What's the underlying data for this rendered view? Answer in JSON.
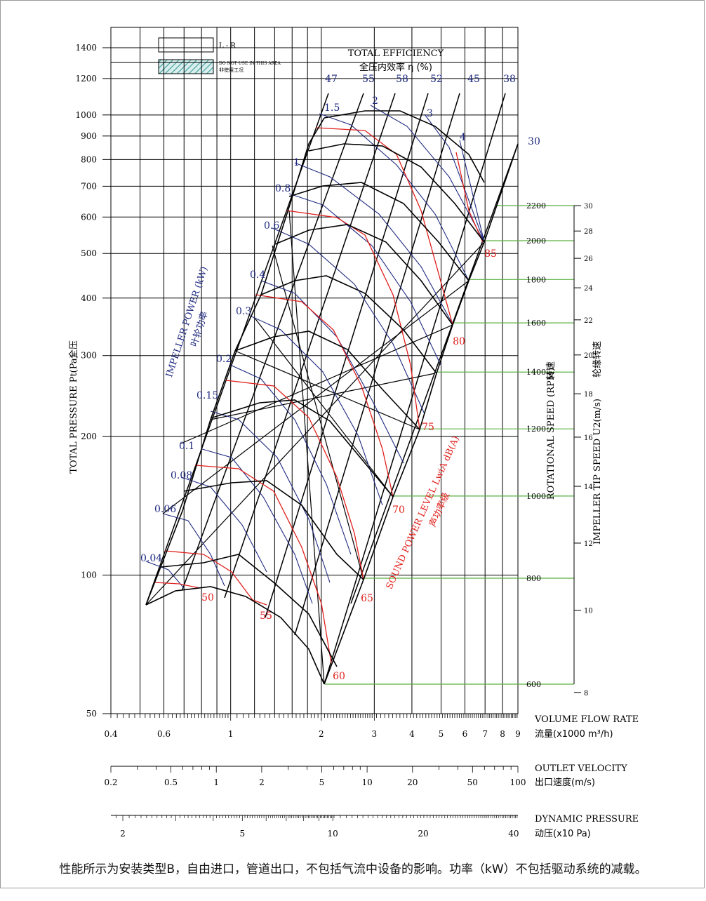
{
  "colors": {
    "grid": "#000000",
    "efficiency": "#1f2a80",
    "power": "#1f2a80",
    "sound": "#e0201c",
    "speed_lines": "#5ab040",
    "envelope": "#000000",
    "area_pattern": "#3a9a98"
  },
  "legend": {
    "lr": "L - R",
    "do_not_use_en": "DO NOT USE IN THIS AREA",
    "do_not_use_cn": "非使用工况"
  },
  "chart_data": {
    "type": "line",
    "scale": "log-log",
    "y_axis": {
      "label_en": "TOTAL PRESSURE Pt(Pa)",
      "label_cn": "全压",
      "ylim": [
        50,
        1550
      ],
      "ticks": [
        "50",
        "100",
        "200",
        "300",
        "400",
        "500",
        "600",
        "700",
        "800",
        "900",
        "1000",
        "1200",
        "1400"
      ]
    },
    "x_axis": {
      "label_en": "VOLUME FLOW RATE",
      "label_cn": "流量(x1000 m³/h)",
      "xlim": [
        0.4,
        9
      ],
      "ticks": [
        "0.4",
        "0.6",
        "1",
        "2",
        "3",
        "4",
        "5",
        "6",
        "7",
        "8",
        "9"
      ]
    },
    "outlet_velocity_axis": {
      "label_en": "OUTLET VELOCITY",
      "label_cn": "出口速度(m/s)",
      "ticks": [
        "0.2",
        "0.5",
        "1",
        "2",
        "5",
        "10",
        "20",
        "50",
        "100"
      ]
    },
    "dynamic_pressure_axis": {
      "label_en": "DYNAMIC PRESSURE",
      "label_cn": "动压(x10 Pa)",
      "ticks": [
        "2",
        "5",
        "10",
        "20",
        "40"
      ]
    },
    "efficiency": {
      "title_en": "TOTAL EFFICIENCY",
      "title_cn": "全压内效率 η (%)",
      "labels": [
        "47",
        "55",
        "58",
        "52",
        "45",
        "38",
        "30"
      ]
    },
    "impeller_power": {
      "label_en": "IMPELLER POWER (kW)",
      "label_cn": "叶轮功率",
      "labels": [
        "0.04",
        "0.06",
        "0.08",
        "0.1",
        "0.15",
        "0.2",
        "0.3",
        "0.4",
        "0.6",
        "0.8",
        "1",
        "1.5",
        "2",
        "3",
        "4"
      ]
    },
    "sound_power": {
      "label_en": "SOUND POWER LEVEL LwiA dB(A)",
      "label_cn": "声功率级",
      "labels": [
        "50",
        "55",
        "60",
        "65",
        "70",
        "75",
        "80",
        "85"
      ]
    },
    "rotational_speed": {
      "label_en": "ROTATIONAL SPEED (RPM)",
      "label_cn": "转速",
      "rpm": [
        600,
        800,
        1000,
        1200,
        1400,
        1600,
        1800,
        2000,
        2200
      ]
    },
    "tip_speed": {
      "label_en": "IMPELLER TIP SPEED U2(m/s)",
      "label_cn": "轮缘转速",
      "ticks": [
        "8",
        "10",
        "12",
        "14",
        "16",
        "18",
        "20",
        "22",
        "24",
        "26",
        "28",
        "30"
      ]
    }
  },
  "footnote": "性能所示为安装类型B，自由进口，管道出口，不包括气流中设备的影响。功率（kW）不包括驱动系统的减载。"
}
